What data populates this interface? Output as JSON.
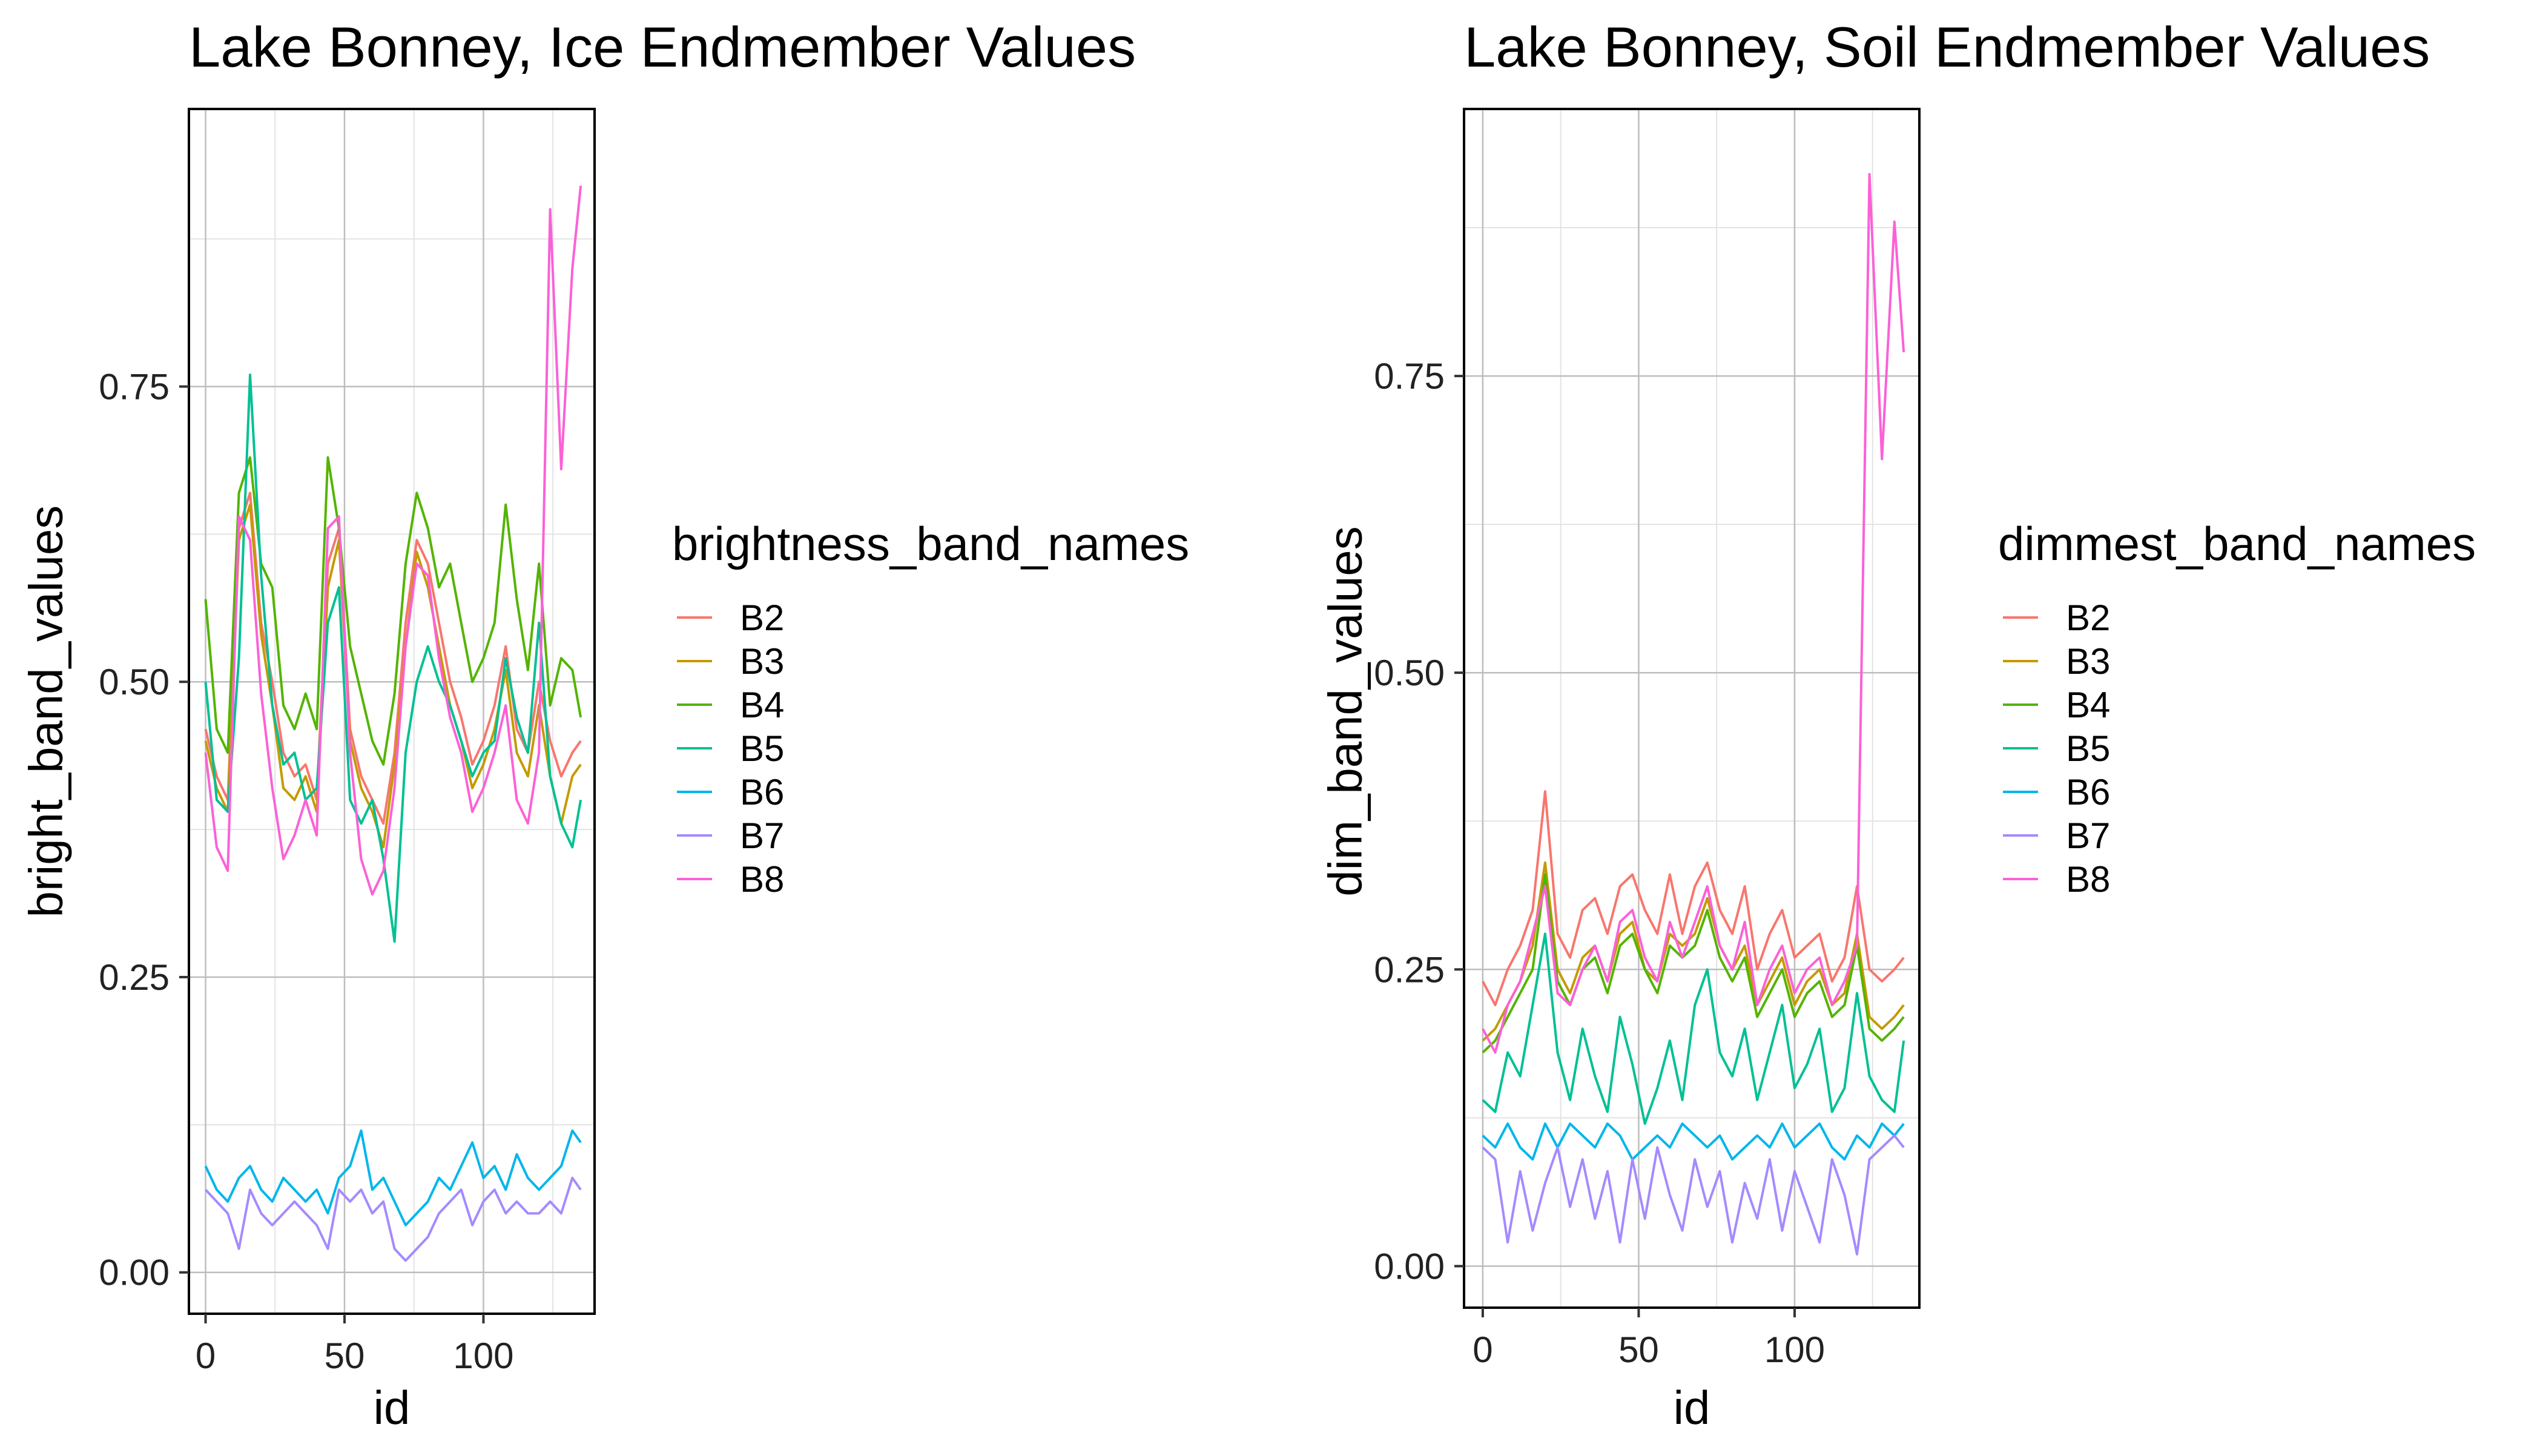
{
  "colors": {
    "B2": "#F8766D",
    "B3": "#C49A00",
    "B4": "#53B400",
    "B5": "#00C094",
    "B6": "#00B6EB",
    "B7": "#A58AFF",
    "B8": "#FB61D7",
    "grid_major": "#bdbdbd",
    "grid_minor": "#e3e3e3",
    "panel_border": "#000000",
    "background": "#ffffff"
  },
  "chart_data": [
    {
      "type": "line",
      "title": "Lake Bonney, Ice Endmember Values",
      "xlabel": "id",
      "ylabel": "bright_band_values",
      "xlim": [
        -6,
        140
      ],
      "ylim": [
        -0.035,
        0.985
      ],
      "x_ticks": [
        0,
        50,
        100
      ],
      "x_tick_labels": [
        "0",
        "50",
        "100"
      ],
      "y_ticks": [
        0.0,
        0.25,
        0.5,
        0.75
      ],
      "y_tick_labels": [
        "0.00",
        "0.25",
        "0.50",
        "0.75"
      ],
      "grid": true,
      "legend_placement": "right",
      "legend_title": "brightness_band_names",
      "series": [
        {
          "name": "B2",
          "x": [
            0,
            4,
            8,
            12,
            16,
            20,
            24,
            28,
            32,
            36,
            40,
            44,
            48,
            52,
            56,
            60,
            64,
            68,
            72,
            76,
            80,
            84,
            88,
            92,
            96,
            100,
            104,
            108,
            112,
            116,
            120,
            124,
            128,
            132,
            135
          ],
          "y": [
            0.46,
            0.42,
            0.4,
            0.63,
            0.66,
            0.55,
            0.5,
            0.44,
            0.42,
            0.43,
            0.4,
            0.6,
            0.63,
            0.46,
            0.42,
            0.4,
            0.38,
            0.44,
            0.55,
            0.62,
            0.6,
            0.55,
            0.5,
            0.47,
            0.43,
            0.45,
            0.48,
            0.53,
            0.46,
            0.44,
            0.5,
            0.45,
            0.42,
            0.44,
            0.45
          ]
        },
        {
          "name": "B3",
          "x": [
            0,
            4,
            8,
            12,
            16,
            20,
            24,
            28,
            32,
            36,
            40,
            44,
            48,
            52,
            56,
            60,
            64,
            68,
            72,
            76,
            80,
            84,
            88,
            92,
            96,
            100,
            104,
            108,
            112,
            116,
            120,
            124,
            128,
            132,
            135
          ],
          "y": [
            0.45,
            0.41,
            0.39,
            0.62,
            0.65,
            0.54,
            0.48,
            0.41,
            0.4,
            0.42,
            0.39,
            0.58,
            0.62,
            0.45,
            0.41,
            0.39,
            0.36,
            0.43,
            0.53,
            0.61,
            0.58,
            0.53,
            0.48,
            0.45,
            0.41,
            0.43,
            0.46,
            0.51,
            0.44,
            0.42,
            0.48,
            0.42,
            0.38,
            0.42,
            0.43
          ]
        },
        {
          "name": "B4",
          "x": [
            0,
            4,
            8,
            12,
            16,
            20,
            24,
            28,
            32,
            36,
            40,
            44,
            48,
            52,
            56,
            60,
            64,
            68,
            72,
            76,
            80,
            84,
            88,
            92,
            96,
            100,
            104,
            108,
            112,
            116,
            120,
            124,
            128,
            132,
            135
          ],
          "y": [
            0.57,
            0.46,
            0.44,
            0.66,
            0.69,
            0.6,
            0.58,
            0.48,
            0.46,
            0.49,
            0.46,
            0.69,
            0.63,
            0.53,
            0.49,
            0.45,
            0.43,
            0.49,
            0.6,
            0.66,
            0.63,
            0.58,
            0.6,
            0.55,
            0.5,
            0.52,
            0.55,
            0.65,
            0.57,
            0.51,
            0.6,
            0.48,
            0.52,
            0.51,
            0.47
          ]
        },
        {
          "name": "B5",
          "x": [
            0,
            4,
            8,
            12,
            16,
            20,
            24,
            28,
            32,
            36,
            40,
            44,
            48,
            52,
            56,
            60,
            64,
            68,
            72,
            76,
            80,
            84,
            88,
            92,
            96,
            100,
            104,
            108,
            112,
            116,
            120,
            124,
            128,
            132,
            135
          ],
          "y": [
            0.5,
            0.4,
            0.39,
            0.52,
            0.76,
            0.59,
            0.48,
            0.43,
            0.44,
            0.4,
            0.41,
            0.55,
            0.58,
            0.4,
            0.38,
            0.4,
            0.35,
            0.28,
            0.44,
            0.5,
            0.53,
            0.5,
            0.48,
            0.45,
            0.42,
            0.44,
            0.45,
            0.52,
            0.47,
            0.44,
            0.55,
            0.42,
            0.38,
            0.36,
            0.4
          ]
        },
        {
          "name": "B6",
          "x": [
            0,
            4,
            8,
            12,
            16,
            20,
            24,
            28,
            32,
            36,
            40,
            44,
            48,
            52,
            56,
            60,
            64,
            68,
            72,
            76,
            80,
            84,
            88,
            92,
            96,
            100,
            104,
            108,
            112,
            116,
            120,
            124,
            128,
            132,
            135
          ],
          "y": [
            0.09,
            0.07,
            0.06,
            0.08,
            0.09,
            0.07,
            0.06,
            0.08,
            0.07,
            0.06,
            0.07,
            0.05,
            0.08,
            0.09,
            0.12,
            0.07,
            0.08,
            0.06,
            0.04,
            0.05,
            0.06,
            0.08,
            0.07,
            0.09,
            0.11,
            0.08,
            0.09,
            0.07,
            0.1,
            0.08,
            0.07,
            0.08,
            0.09,
            0.12,
            0.11
          ]
        },
        {
          "name": "B7",
          "x": [
            0,
            4,
            8,
            12,
            16,
            20,
            24,
            28,
            32,
            36,
            40,
            44,
            48,
            52,
            56,
            60,
            64,
            68,
            72,
            76,
            80,
            84,
            88,
            92,
            96,
            100,
            104,
            108,
            112,
            116,
            120,
            124,
            128,
            132,
            135
          ],
          "y": [
            0.07,
            0.06,
            0.05,
            0.02,
            0.07,
            0.05,
            0.04,
            0.05,
            0.06,
            0.05,
            0.04,
            0.02,
            0.07,
            0.06,
            0.07,
            0.05,
            0.06,
            0.02,
            0.01,
            0.02,
            0.03,
            0.05,
            0.06,
            0.07,
            0.04,
            0.06,
            0.07,
            0.05,
            0.06,
            0.05,
            0.05,
            0.06,
            0.05,
            0.08,
            0.07
          ]
        },
        {
          "name": "B8",
          "x": [
            0,
            4,
            8,
            12,
            16,
            20,
            24,
            28,
            32,
            36,
            40,
            44,
            48,
            52,
            56,
            60,
            64,
            68,
            72,
            76,
            80,
            84,
            88,
            92,
            96,
            100,
            104,
            108,
            112,
            116,
            120,
            124,
            128,
            132,
            135
          ],
          "y": [
            0.44,
            0.36,
            0.34,
            0.64,
            0.62,
            0.49,
            0.41,
            0.35,
            0.37,
            0.4,
            0.37,
            0.63,
            0.64,
            0.44,
            0.35,
            0.32,
            0.34,
            0.41,
            0.53,
            0.6,
            0.59,
            0.52,
            0.47,
            0.44,
            0.39,
            0.41,
            0.44,
            0.48,
            0.4,
            0.38,
            0.44,
            0.9,
            0.68,
            0.85,
            0.92
          ]
        }
      ]
    },
    {
      "type": "line",
      "title": "Lake Bonney, Soil Endmember Values",
      "xlabel": "id",
      "ylabel": "dim_band_values",
      "xlim": [
        -6,
        140
      ],
      "ylim": [
        -0.035,
        0.975
      ],
      "x_ticks": [
        0,
        50,
        100
      ],
      "x_tick_labels": [
        "0",
        "50",
        "100"
      ],
      "y_ticks": [
        0.0,
        0.25,
        0.5,
        0.75
      ],
      "y_tick_labels": [
        "0.00",
        "0.25",
        "0.50",
        "0.75"
      ],
      "grid": true,
      "legend_placement": "right",
      "legend_title": "dimmest_band_names",
      "series": [
        {
          "name": "B2",
          "x": [
            0,
            4,
            8,
            12,
            16,
            20,
            24,
            28,
            32,
            36,
            40,
            44,
            48,
            52,
            56,
            60,
            64,
            68,
            72,
            76,
            80,
            84,
            88,
            92,
            96,
            100,
            104,
            108,
            112,
            116,
            120,
            124,
            128,
            132,
            135
          ],
          "y": [
            0.24,
            0.22,
            0.25,
            0.27,
            0.3,
            0.4,
            0.28,
            0.26,
            0.3,
            0.31,
            0.28,
            0.32,
            0.33,
            0.3,
            0.28,
            0.33,
            0.28,
            0.32,
            0.34,
            0.3,
            0.28,
            0.32,
            0.25,
            0.28,
            0.3,
            0.26,
            0.27,
            0.28,
            0.24,
            0.26,
            0.32,
            0.25,
            0.24,
            0.25,
            0.26
          ]
        },
        {
          "name": "B3",
          "x": [
            0,
            4,
            8,
            12,
            16,
            20,
            24,
            28,
            32,
            36,
            40,
            44,
            48,
            52,
            56,
            60,
            64,
            68,
            72,
            76,
            80,
            84,
            88,
            92,
            96,
            100,
            104,
            108,
            112,
            116,
            120,
            124,
            128,
            132,
            135
          ],
          "y": [
            0.19,
            0.2,
            0.22,
            0.24,
            0.27,
            0.34,
            0.25,
            0.23,
            0.26,
            0.27,
            0.24,
            0.28,
            0.29,
            0.25,
            0.24,
            0.28,
            0.27,
            0.28,
            0.31,
            0.27,
            0.25,
            0.27,
            0.22,
            0.24,
            0.26,
            0.22,
            0.24,
            0.25,
            0.22,
            0.23,
            0.28,
            0.21,
            0.2,
            0.21,
            0.22
          ]
        },
        {
          "name": "B4",
          "x": [
            0,
            4,
            8,
            12,
            16,
            20,
            24,
            28,
            32,
            36,
            40,
            44,
            48,
            52,
            56,
            60,
            64,
            68,
            72,
            76,
            80,
            84,
            88,
            92,
            96,
            100,
            104,
            108,
            112,
            116,
            120,
            124,
            128,
            132,
            135
          ],
          "y": [
            0.18,
            0.19,
            0.21,
            0.23,
            0.25,
            0.33,
            0.24,
            0.22,
            0.25,
            0.26,
            0.23,
            0.27,
            0.28,
            0.25,
            0.23,
            0.27,
            0.26,
            0.27,
            0.3,
            0.26,
            0.24,
            0.26,
            0.21,
            0.23,
            0.25,
            0.21,
            0.23,
            0.24,
            0.21,
            0.22,
            0.27,
            0.2,
            0.19,
            0.2,
            0.21
          ]
        },
        {
          "name": "B5",
          "x": [
            0,
            4,
            8,
            12,
            16,
            20,
            24,
            28,
            32,
            36,
            40,
            44,
            48,
            52,
            56,
            60,
            64,
            68,
            72,
            76,
            80,
            84,
            88,
            92,
            96,
            100,
            104,
            108,
            112,
            116,
            120,
            124,
            128,
            132,
            135
          ],
          "y": [
            0.14,
            0.13,
            0.18,
            0.16,
            0.22,
            0.28,
            0.18,
            0.14,
            0.2,
            0.16,
            0.13,
            0.21,
            0.17,
            0.12,
            0.15,
            0.19,
            0.14,
            0.22,
            0.25,
            0.18,
            0.16,
            0.2,
            0.14,
            0.18,
            0.22,
            0.15,
            0.17,
            0.2,
            0.13,
            0.15,
            0.23,
            0.16,
            0.14,
            0.13,
            0.19
          ]
        },
        {
          "name": "B6",
          "x": [
            0,
            4,
            8,
            12,
            16,
            20,
            24,
            28,
            32,
            36,
            40,
            44,
            48,
            52,
            56,
            60,
            64,
            68,
            72,
            76,
            80,
            84,
            88,
            92,
            96,
            100,
            104,
            108,
            112,
            116,
            120,
            124,
            128,
            132,
            135
          ],
          "y": [
            0.11,
            0.1,
            0.12,
            0.1,
            0.09,
            0.12,
            0.1,
            0.12,
            0.11,
            0.1,
            0.12,
            0.11,
            0.09,
            0.1,
            0.11,
            0.1,
            0.12,
            0.11,
            0.1,
            0.11,
            0.09,
            0.1,
            0.11,
            0.1,
            0.12,
            0.1,
            0.11,
            0.12,
            0.1,
            0.09,
            0.11,
            0.1,
            0.12,
            0.11,
            0.12
          ]
        },
        {
          "name": "B7",
          "x": [
            0,
            4,
            8,
            12,
            16,
            20,
            24,
            28,
            32,
            36,
            40,
            44,
            48,
            52,
            56,
            60,
            64,
            68,
            72,
            76,
            80,
            84,
            88,
            92,
            96,
            100,
            104,
            108,
            112,
            116,
            120,
            124,
            128,
            132,
            135
          ],
          "y": [
            0.1,
            0.09,
            0.02,
            0.08,
            0.03,
            0.07,
            0.1,
            0.05,
            0.09,
            0.04,
            0.08,
            0.02,
            0.09,
            0.04,
            0.1,
            0.06,
            0.03,
            0.09,
            0.05,
            0.08,
            0.02,
            0.07,
            0.04,
            0.09,
            0.03,
            0.08,
            0.05,
            0.02,
            0.09,
            0.06,
            0.01,
            0.09,
            0.1,
            0.11,
            0.1
          ]
        },
        {
          "name": "B8",
          "x": [
            0,
            4,
            8,
            12,
            16,
            20,
            24,
            28,
            32,
            36,
            40,
            44,
            48,
            52,
            56,
            60,
            64,
            68,
            72,
            76,
            80,
            84,
            88,
            92,
            96,
            100,
            104,
            108,
            112,
            116,
            120,
            124,
            128,
            132,
            135
          ],
          "y": [
            0.2,
            0.18,
            0.22,
            0.24,
            0.28,
            0.32,
            0.23,
            0.22,
            0.25,
            0.27,
            0.24,
            0.29,
            0.3,
            0.26,
            0.24,
            0.29,
            0.26,
            0.29,
            0.32,
            0.27,
            0.25,
            0.29,
            0.22,
            0.25,
            0.27,
            0.23,
            0.25,
            0.26,
            0.22,
            0.24,
            0.27,
            0.92,
            0.68,
            0.88,
            0.77
          ]
        }
      ]
    }
  ]
}
